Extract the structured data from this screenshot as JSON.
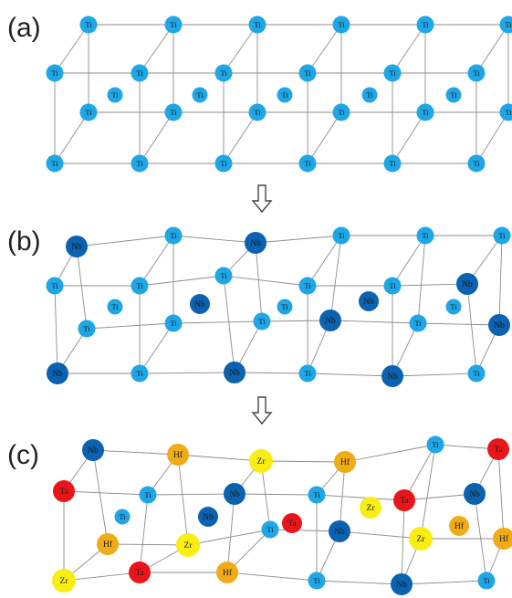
{
  "colors": {
    "Ti": "#1ea6e6",
    "Nb": "#0a62b0",
    "Hf": "#f0ac16",
    "Zr": "#f8ee14",
    "Ta": "#e8161a",
    "background": "#ffffff",
    "bond": "#8c8c8c"
  },
  "panels": [
    {
      "label": "(a)",
      "atoms": [
        "Ti",
        "Ti",
        "Ti",
        "Ti",
        "Ti",
        "Ti",
        "Ti",
        "Ti",
        "Ti",
        "Ti",
        "Ti",
        "Ti",
        "Ti",
        "Ti",
        "Ti",
        "Ti",
        "Ti",
        "Ti",
        "Ti",
        "Ti",
        "Ti",
        "Ti",
        "Ti",
        "Ti",
        "Ti",
        "Ti",
        "Ti",
        "Ti",
        "Ti"
      ]
    },
    {
      "label": "(b)",
      "atoms": [
        "Nb",
        "Ti",
        "Nb",
        "Ti",
        "Ti",
        "Ti",
        "Ti",
        "Ti",
        "Ti",
        "Ti",
        "Ti",
        "Nb",
        "Ti",
        "Nb",
        "Ti",
        "Nb",
        "Ti",
        "Ti",
        "Ti",
        "Ti",
        "Nb",
        "Ti",
        "Nb",
        "Nb",
        "Ti",
        "Nb",
        "Ti",
        "Nb",
        "Ti"
      ]
    },
    {
      "label": "(c)",
      "atoms": [
        "Nb",
        "Hf",
        "Zr",
        "Hf",
        "Ti",
        "Ta",
        "Ta",
        "Ti",
        "Nb",
        "Ti",
        "Ta",
        "Nb",
        "Ti",
        "Nb",
        "Ta",
        "Zr",
        "Hf",
        "Hf",
        "Zr",
        "Ti",
        "Nb",
        "Zr",
        "Hf",
        "Zr",
        "Ta",
        "Hf",
        "Ti",
        "Nb",
        "Ti"
      ]
    }
  ]
}
